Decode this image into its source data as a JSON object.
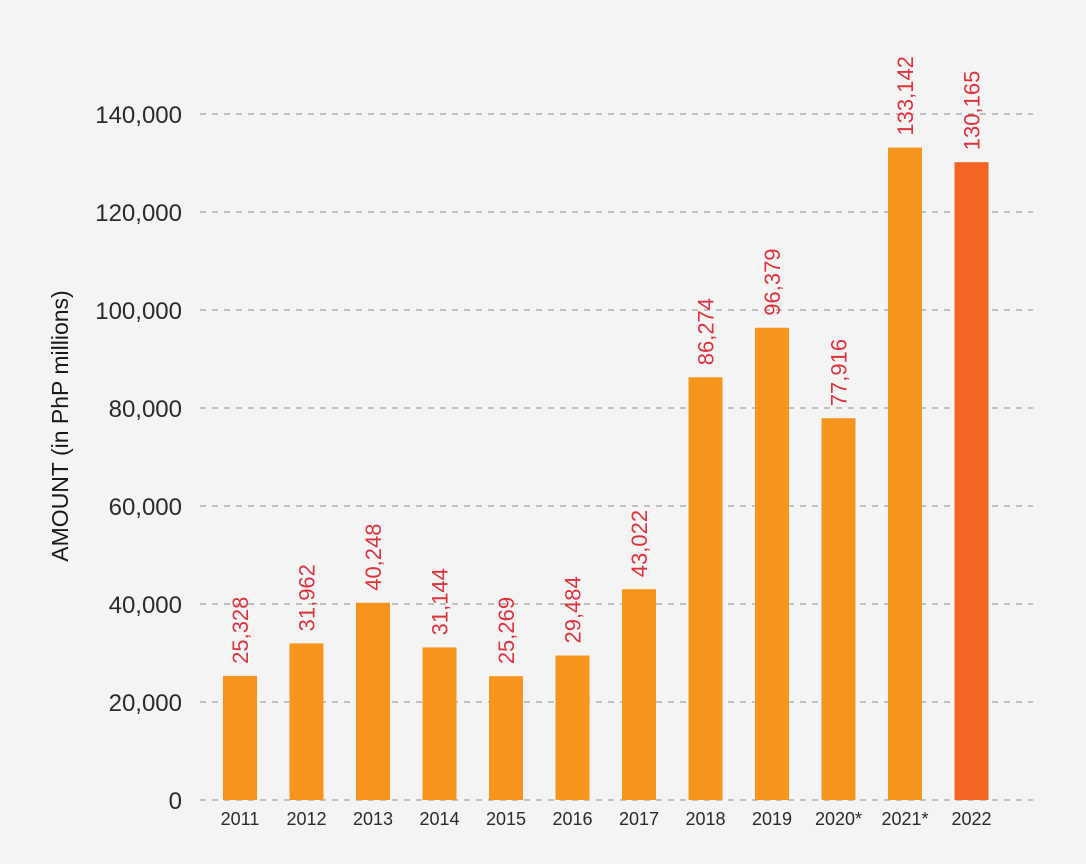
{
  "chart_data": {
    "type": "bar",
    "ylabel": "AMOUNT (in PhP millions)",
    "xlabel": "",
    "title": "",
    "categories": [
      "2011",
      "2012",
      "2013",
      "2014",
      "2015",
      "2016",
      "2017",
      "2018",
      "2019",
      "2020*",
      "2021*",
      "2022"
    ],
    "values": [
      25328,
      31962,
      40248,
      31144,
      25269,
      29484,
      43022,
      86274,
      96379,
      77916,
      133142,
      130165
    ],
    "data_labels": [
      "25,328",
      "31,962",
      "40,248",
      "31,144",
      "25,269",
      "29,484",
      "43,022",
      "86,274",
      "96,379",
      "77,916",
      "133,142",
      "130,165"
    ],
    "yticks": [
      0,
      20000,
      40000,
      60000,
      80000,
      100000,
      120000,
      140000
    ],
    "ytick_labels": [
      "0",
      "20,000",
      "40,000",
      "60,000",
      "80,000",
      "100,000",
      "120,000",
      "140,000"
    ],
    "ylim": [
      0,
      140000
    ],
    "grid": true,
    "legend": "none",
    "colors": {
      "bar": "#f7941d",
      "highlight_bar": "#f26522",
      "highlight_category": "2022",
      "data_label": "#e0323c",
      "gridline": "#8e8e8e",
      "text": "#2b2b2b",
      "background": "#f4f4f4"
    }
  }
}
